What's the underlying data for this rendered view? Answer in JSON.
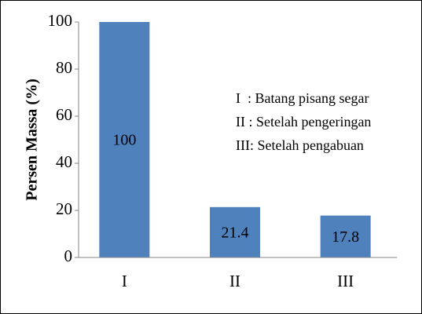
{
  "chart_data": {
    "type": "bar",
    "y_label": "Persen Massa (%)",
    "categories": [
      "I",
      "II",
      "III"
    ],
    "values": [
      100,
      21.4,
      17.8
    ],
    "color": "#4f81bd",
    "ylim": [
      0,
      100
    ],
    "yticks": [
      0,
      20,
      40,
      60,
      80,
      100
    ],
    "annotations": [
      "I  : Batang pisang segar",
      "II : Setelah pengeringan",
      "III: Setelah pengabuan"
    ]
  }
}
